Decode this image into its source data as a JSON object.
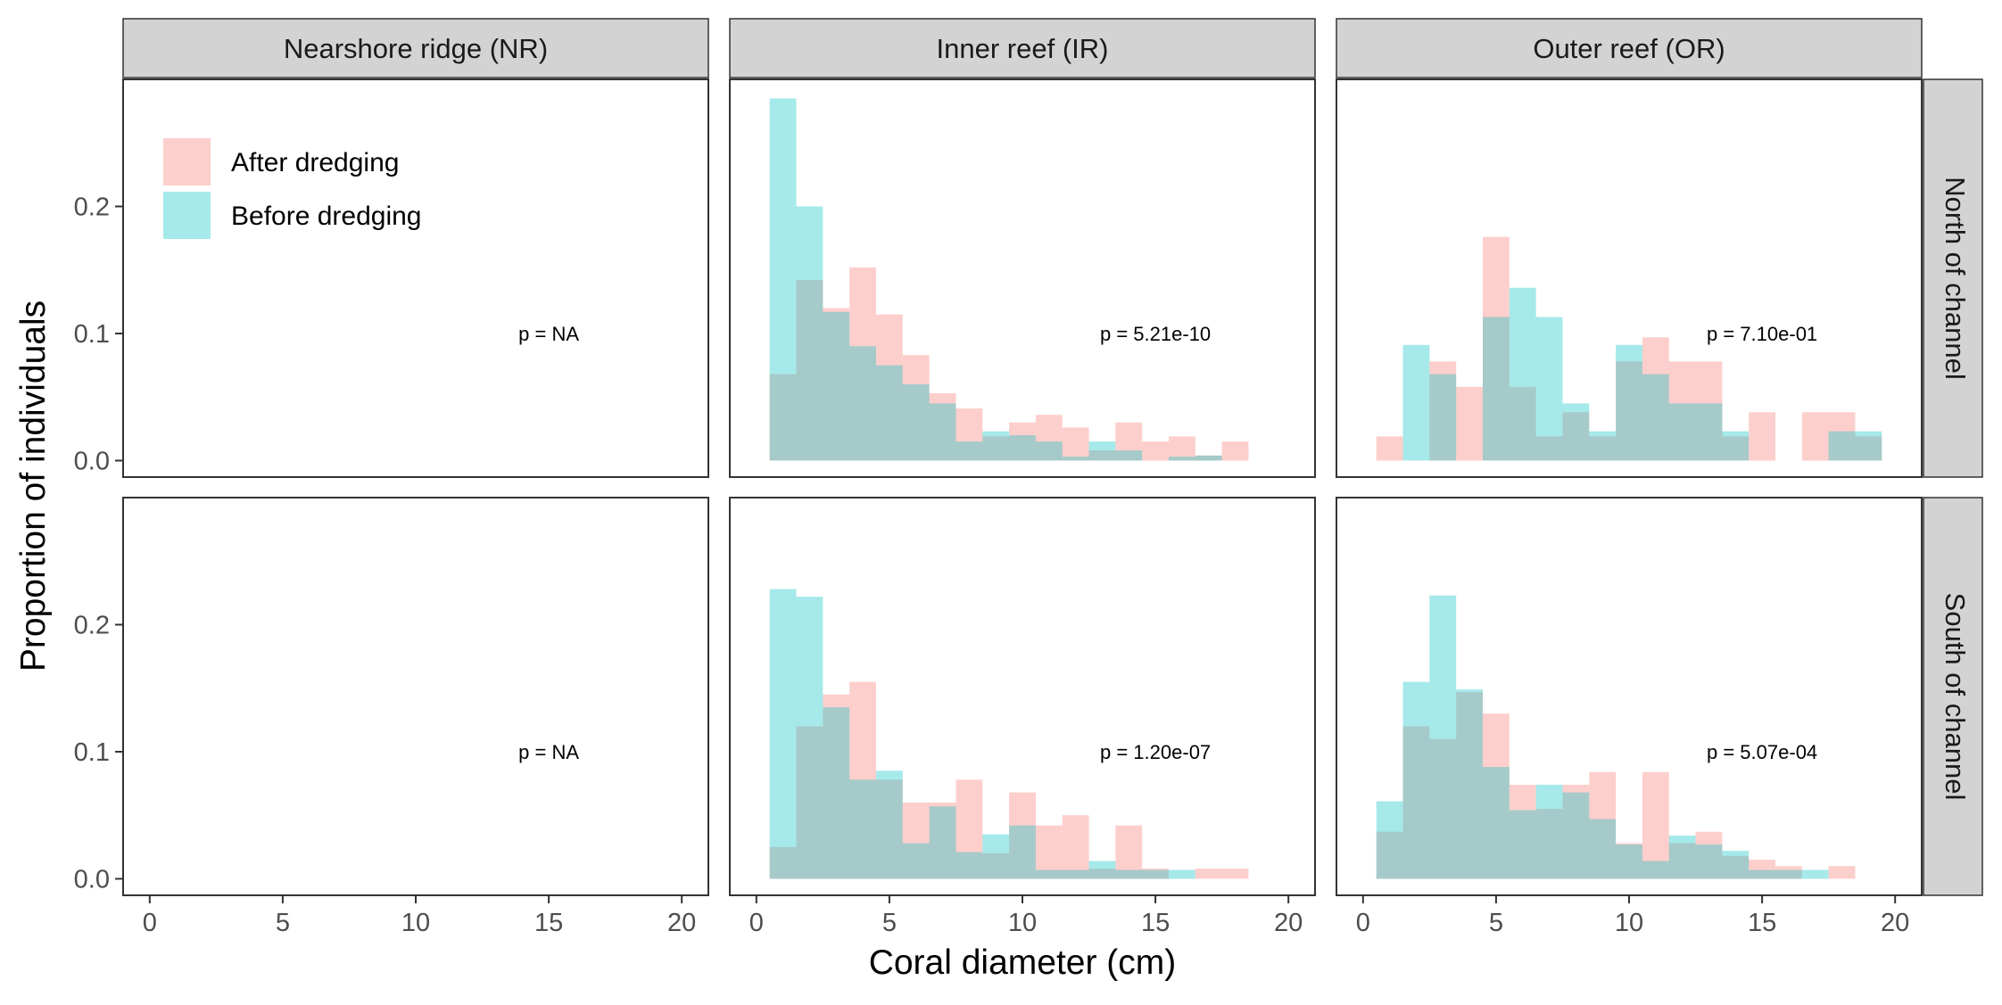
{
  "chart_data": {
    "type": "histogram",
    "xlabel": "Coral diameter (cm)",
    "ylabel": "Proportion of individuals",
    "xlim": [
      -1,
      21
    ],
    "ylim": [
      -0.013,
      0.3
    ],
    "x_ticks": [
      0,
      5,
      10,
      15,
      20
    ],
    "y_ticks": [
      0.0,
      0.1,
      0.2
    ],
    "x_tick_labels": [
      "0",
      "5",
      "10",
      "15",
      "20"
    ],
    "y_tick_labels": [
      "0.0",
      "0.1",
      "0.2"
    ],
    "bin_width": 1,
    "bin_start": 0.5,
    "columns": [
      "Nearshore ridge (NR)",
      "Inner reef (IR)",
      "Outer reef (OR)"
    ],
    "rows": [
      "North of channel",
      "South of channel"
    ],
    "legend": {
      "placement": "top-left inside first panel",
      "entries": [
        {
          "label": "After dredging",
          "color": "#F8766D"
        },
        {
          "label": "Before dredging",
          "color": "#00BFC4"
        }
      ]
    },
    "fill_opacity": 0.35,
    "panels": [
      {
        "row": 0,
        "col": 0,
        "p_label": "p =  NA",
        "after": [],
        "before": []
      },
      {
        "row": 0,
        "col": 1,
        "p_label": "p = 5.21e-10",
        "after": [
          0.068,
          0.142,
          0.12,
          0.152,
          0.115,
          0.083,
          0.053,
          0.041,
          0.019,
          0.03,
          0.036,
          0.026,
          0.008,
          0.03,
          0.015,
          0.019,
          0.004,
          0.015
        ],
        "before": [
          0.285,
          0.2,
          0.117,
          0.09,
          0.075,
          0.06,
          0.045,
          0.015,
          0.023,
          0.02,
          0.015,
          0.003,
          0.015,
          0.008,
          0.0,
          0.003,
          0.004,
          0.0
        ]
      },
      {
        "row": 0,
        "col": 2,
        "p_label": "p = 7.10e-01",
        "after": [
          0.019,
          0.0,
          0.078,
          0.058,
          0.176,
          0.058,
          0.019,
          0.038,
          0.019,
          0.078,
          0.097,
          0.078,
          0.078,
          0.019,
          0.038,
          0.0,
          0.038,
          0.038,
          0.019
        ],
        "before": [
          0.0,
          0.091,
          0.068,
          0.0,
          0.113,
          0.136,
          0.113,
          0.045,
          0.023,
          0.091,
          0.068,
          0.045,
          0.045,
          0.023,
          0.0,
          0.0,
          0.0,
          0.023,
          0.023
        ]
      },
      {
        "row": 1,
        "col": 0,
        "p_label": "p =  NA",
        "after": [],
        "before": []
      },
      {
        "row": 1,
        "col": 1,
        "p_label": "p = 1.20e-07",
        "after": [
          0.025,
          0.12,
          0.145,
          0.155,
          0.078,
          0.06,
          0.06,
          0.078,
          0.02,
          0.068,
          0.042,
          0.05,
          0.008,
          0.042,
          0.008,
          0.0,
          0.008,
          0.008
        ],
        "before": [
          0.228,
          0.222,
          0.135,
          0.078,
          0.085,
          0.028,
          0.057,
          0.021,
          0.035,
          0.042,
          0.007,
          0.007,
          0.014,
          0.007,
          0.007,
          0.007,
          0.0,
          0.0
        ]
      },
      {
        "row": 1,
        "col": 2,
        "p_label": "p = 5.07e-04",
        "after": [
          0.037,
          0.12,
          0.11,
          0.147,
          0.13,
          0.074,
          0.055,
          0.074,
          0.084,
          0.028,
          0.084,
          0.028,
          0.037,
          0.018,
          0.015,
          0.01,
          0.0,
          0.01
        ],
        "before": [
          0.061,
          0.155,
          0.223,
          0.149,
          0.088,
          0.054,
          0.074,
          0.068,
          0.047,
          0.027,
          0.014,
          0.034,
          0.027,
          0.022,
          0.007,
          0.007,
          0.007,
          0.0
        ]
      }
    ]
  }
}
